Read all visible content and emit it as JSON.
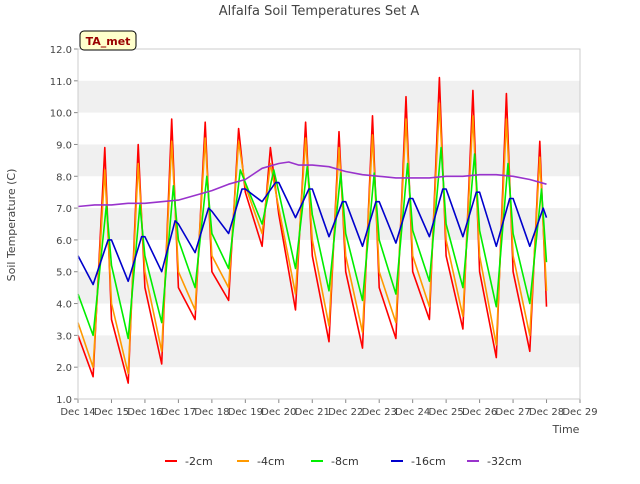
{
  "chart_data": {
    "type": "line",
    "title": "Alfalfa Soil Temperatures Set A",
    "xlabel": "Time",
    "ylabel": "Soil Temperature (C)",
    "xlim": [
      14,
      29
    ],
    "ylim": [
      1.0,
      12.0
    ],
    "yticks": [
      1.0,
      2.0,
      3.0,
      4.0,
      5.0,
      6.0,
      7.0,
      8.0,
      9.0,
      10.0,
      11.0,
      12.0
    ],
    "ytick_labels": [
      "1.0",
      "2.0",
      "3.0",
      "4.0",
      "5.0",
      "6.0",
      "7.0",
      "8.0",
      "9.0",
      "10.0",
      "11.0",
      "12.0"
    ],
    "xticks": [
      14,
      15,
      16,
      17,
      18,
      19,
      20,
      21,
      22,
      23,
      24,
      25,
      26,
      27,
      28,
      29
    ],
    "xtick_labels": [
      "Dec 14",
      "Dec 15",
      "Dec 16",
      "Dec 17",
      "Dec 18",
      "Dec 19",
      "Dec 20",
      "Dec 21",
      "Dec 22",
      "Dec 23",
      "Dec 24",
      "Dec 25",
      "Dec 26",
      "Dec 27",
      "Dec 28",
      "Dec 29"
    ],
    "grid": "horizontal bands",
    "legend_position": "bottom",
    "annotation": "TA_met",
    "series": [
      {
        "name": "-2cm",
        "color": "#ff0000",
        "x": [
          14.0,
          14.45,
          14.8,
          15.0,
          15.5,
          15.8,
          16.0,
          16.5,
          16.8,
          17.0,
          17.5,
          17.8,
          18.0,
          18.5,
          18.8,
          19.0,
          19.5,
          19.75,
          20.0,
          20.5,
          20.8,
          21.0,
          21.5,
          21.8,
          22.0,
          22.5,
          22.8,
          23.0,
          23.5,
          23.8,
          24.0,
          24.5,
          24.8,
          25.0,
          25.5,
          25.8,
          26.0,
          26.5,
          26.8,
          27.0,
          27.5,
          27.8,
          28.0
        ],
        "y": [
          3.0,
          1.7,
          8.9,
          3.5,
          1.5,
          9.0,
          4.5,
          2.1,
          9.8,
          4.5,
          3.5,
          9.7,
          5.0,
          4.1,
          9.5,
          7.5,
          5.8,
          8.9,
          6.8,
          3.8,
          9.7,
          5.5,
          2.8,
          9.4,
          5.0,
          2.6,
          9.9,
          4.5,
          2.9,
          10.5,
          5.0,
          3.5,
          11.1,
          5.5,
          3.2,
          10.7,
          5.0,
          2.3,
          10.6,
          5.0,
          2.5,
          9.1,
          3.9
        ]
      },
      {
        "name": "-4cm",
        "color": "#ff9900",
        "x": [
          14.0,
          14.45,
          14.8,
          15.0,
          15.5,
          15.8,
          16.0,
          16.5,
          16.8,
          17.0,
          17.5,
          17.8,
          18.0,
          18.5,
          18.8,
          19.0,
          19.5,
          19.75,
          20.0,
          20.5,
          20.8,
          21.0,
          21.5,
          21.8,
          22.0,
          22.5,
          22.8,
          23.0,
          23.5,
          23.8,
          24.0,
          24.5,
          24.8,
          25.0,
          25.5,
          25.8,
          26.0,
          26.5,
          26.8,
          27.0,
          27.5,
          27.8,
          28.0
        ],
        "y": [
          3.4,
          2.0,
          8.2,
          4.0,
          1.8,
          8.4,
          5.0,
          2.5,
          9.1,
          5.0,
          3.8,
          9.2,
          5.5,
          4.5,
          9.1,
          7.7,
          6.2,
          8.4,
          7.0,
          4.3,
          9.2,
          6.0,
          3.3,
          8.9,
          5.5,
          3.1,
          9.3,
          5.0,
          3.4,
          9.8,
          5.5,
          3.9,
          10.3,
          6.0,
          3.6,
          9.9,
          5.5,
          2.7,
          9.8,
          5.5,
          3.0,
          8.6,
          4.4
        ]
      },
      {
        "name": "-8cm",
        "color": "#00ee00",
        "x": [
          14.0,
          14.45,
          14.85,
          15.0,
          15.5,
          15.85,
          16.0,
          16.5,
          16.85,
          17.0,
          17.5,
          17.85,
          18.0,
          18.5,
          18.85,
          19.0,
          19.5,
          19.85,
          20.0,
          20.5,
          20.85,
          21.0,
          21.5,
          21.85,
          22.0,
          22.5,
          22.85,
          23.0,
          23.5,
          23.85,
          24.0,
          24.5,
          24.85,
          25.0,
          25.5,
          25.85,
          26.0,
          26.5,
          26.85,
          27.0,
          27.5,
          27.85,
          28.0
        ],
        "y": [
          4.3,
          3.0,
          7.1,
          5.2,
          2.9,
          7.1,
          5.5,
          3.4,
          7.7,
          6.0,
          4.5,
          8.0,
          6.2,
          5.1,
          8.2,
          7.8,
          6.5,
          8.2,
          7.5,
          5.1,
          8.3,
          6.8,
          4.4,
          8.1,
          6.2,
          4.1,
          8.1,
          6.0,
          4.3,
          8.4,
          6.3,
          4.7,
          8.9,
          6.5,
          4.5,
          8.7,
          6.3,
          3.9,
          8.4,
          6.2,
          4.0,
          7.6,
          5.3
        ]
      },
      {
        "name": "-16cm",
        "color": "#0000cc",
        "x": [
          14.0,
          14.45,
          14.9,
          15.0,
          15.5,
          15.9,
          16.0,
          16.5,
          16.9,
          17.0,
          17.5,
          17.9,
          18.0,
          18.5,
          18.9,
          19.0,
          19.5,
          19.9,
          20.0,
          20.5,
          20.9,
          21.0,
          21.5,
          21.9,
          22.0,
          22.5,
          22.9,
          23.0,
          23.5,
          23.9,
          24.0,
          24.5,
          24.9,
          25.0,
          25.5,
          25.9,
          26.0,
          26.5,
          26.9,
          27.0,
          27.5,
          27.9,
          28.0
        ],
        "y": [
          5.5,
          4.6,
          6.0,
          6.0,
          4.7,
          6.1,
          6.1,
          5.0,
          6.6,
          6.5,
          5.6,
          7.0,
          6.9,
          6.2,
          7.6,
          7.6,
          7.2,
          7.8,
          7.8,
          6.7,
          7.6,
          7.6,
          6.1,
          7.2,
          7.2,
          5.8,
          7.2,
          7.2,
          5.9,
          7.3,
          7.3,
          6.1,
          7.6,
          7.6,
          6.1,
          7.5,
          7.5,
          5.8,
          7.3,
          7.3,
          5.8,
          7.0,
          6.7
        ]
      },
      {
        "name": "-32cm",
        "color": "#9933cc",
        "x": [
          14.0,
          14.5,
          15.0,
          15.5,
          16.0,
          16.5,
          17.0,
          17.5,
          18.0,
          18.5,
          19.0,
          19.5,
          20.0,
          20.3,
          20.6,
          21.0,
          21.5,
          22.0,
          22.5,
          23.0,
          23.5,
          24.0,
          24.5,
          25.0,
          25.5,
          26.0,
          26.5,
          27.0,
          27.5,
          28.0
        ],
        "y": [
          7.05,
          7.1,
          7.1,
          7.15,
          7.15,
          7.2,
          7.25,
          7.4,
          7.55,
          7.75,
          7.9,
          8.25,
          8.4,
          8.45,
          8.35,
          8.35,
          8.3,
          8.15,
          8.05,
          8.0,
          7.95,
          7.95,
          7.95,
          8.0,
          8.0,
          8.05,
          8.05,
          8.0,
          7.9,
          7.75
        ]
      }
    ]
  }
}
